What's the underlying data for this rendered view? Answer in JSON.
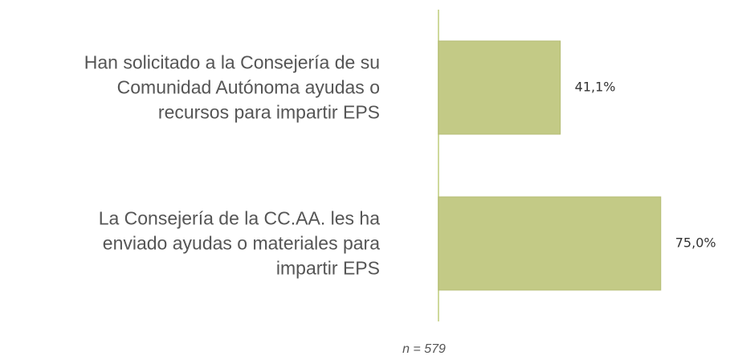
{
  "chart_data": {
    "type": "bar",
    "orientation": "horizontal",
    "categories": [
      "Han solicitado a la Consejería de su\nComunidad Autónoma ayudas o\nrecursos para impartir EPS",
      "La Consejería de la CC.AA. les ha\nenviado ayudas o materiales para\nimpartir EPS"
    ],
    "values": [
      41.1,
      75.0
    ],
    "value_labels": [
      "41,1%",
      "75,0%"
    ],
    "color": "#c3ca86",
    "xlim": [
      0,
      100
    ],
    "annotation": "n = 579"
  }
}
